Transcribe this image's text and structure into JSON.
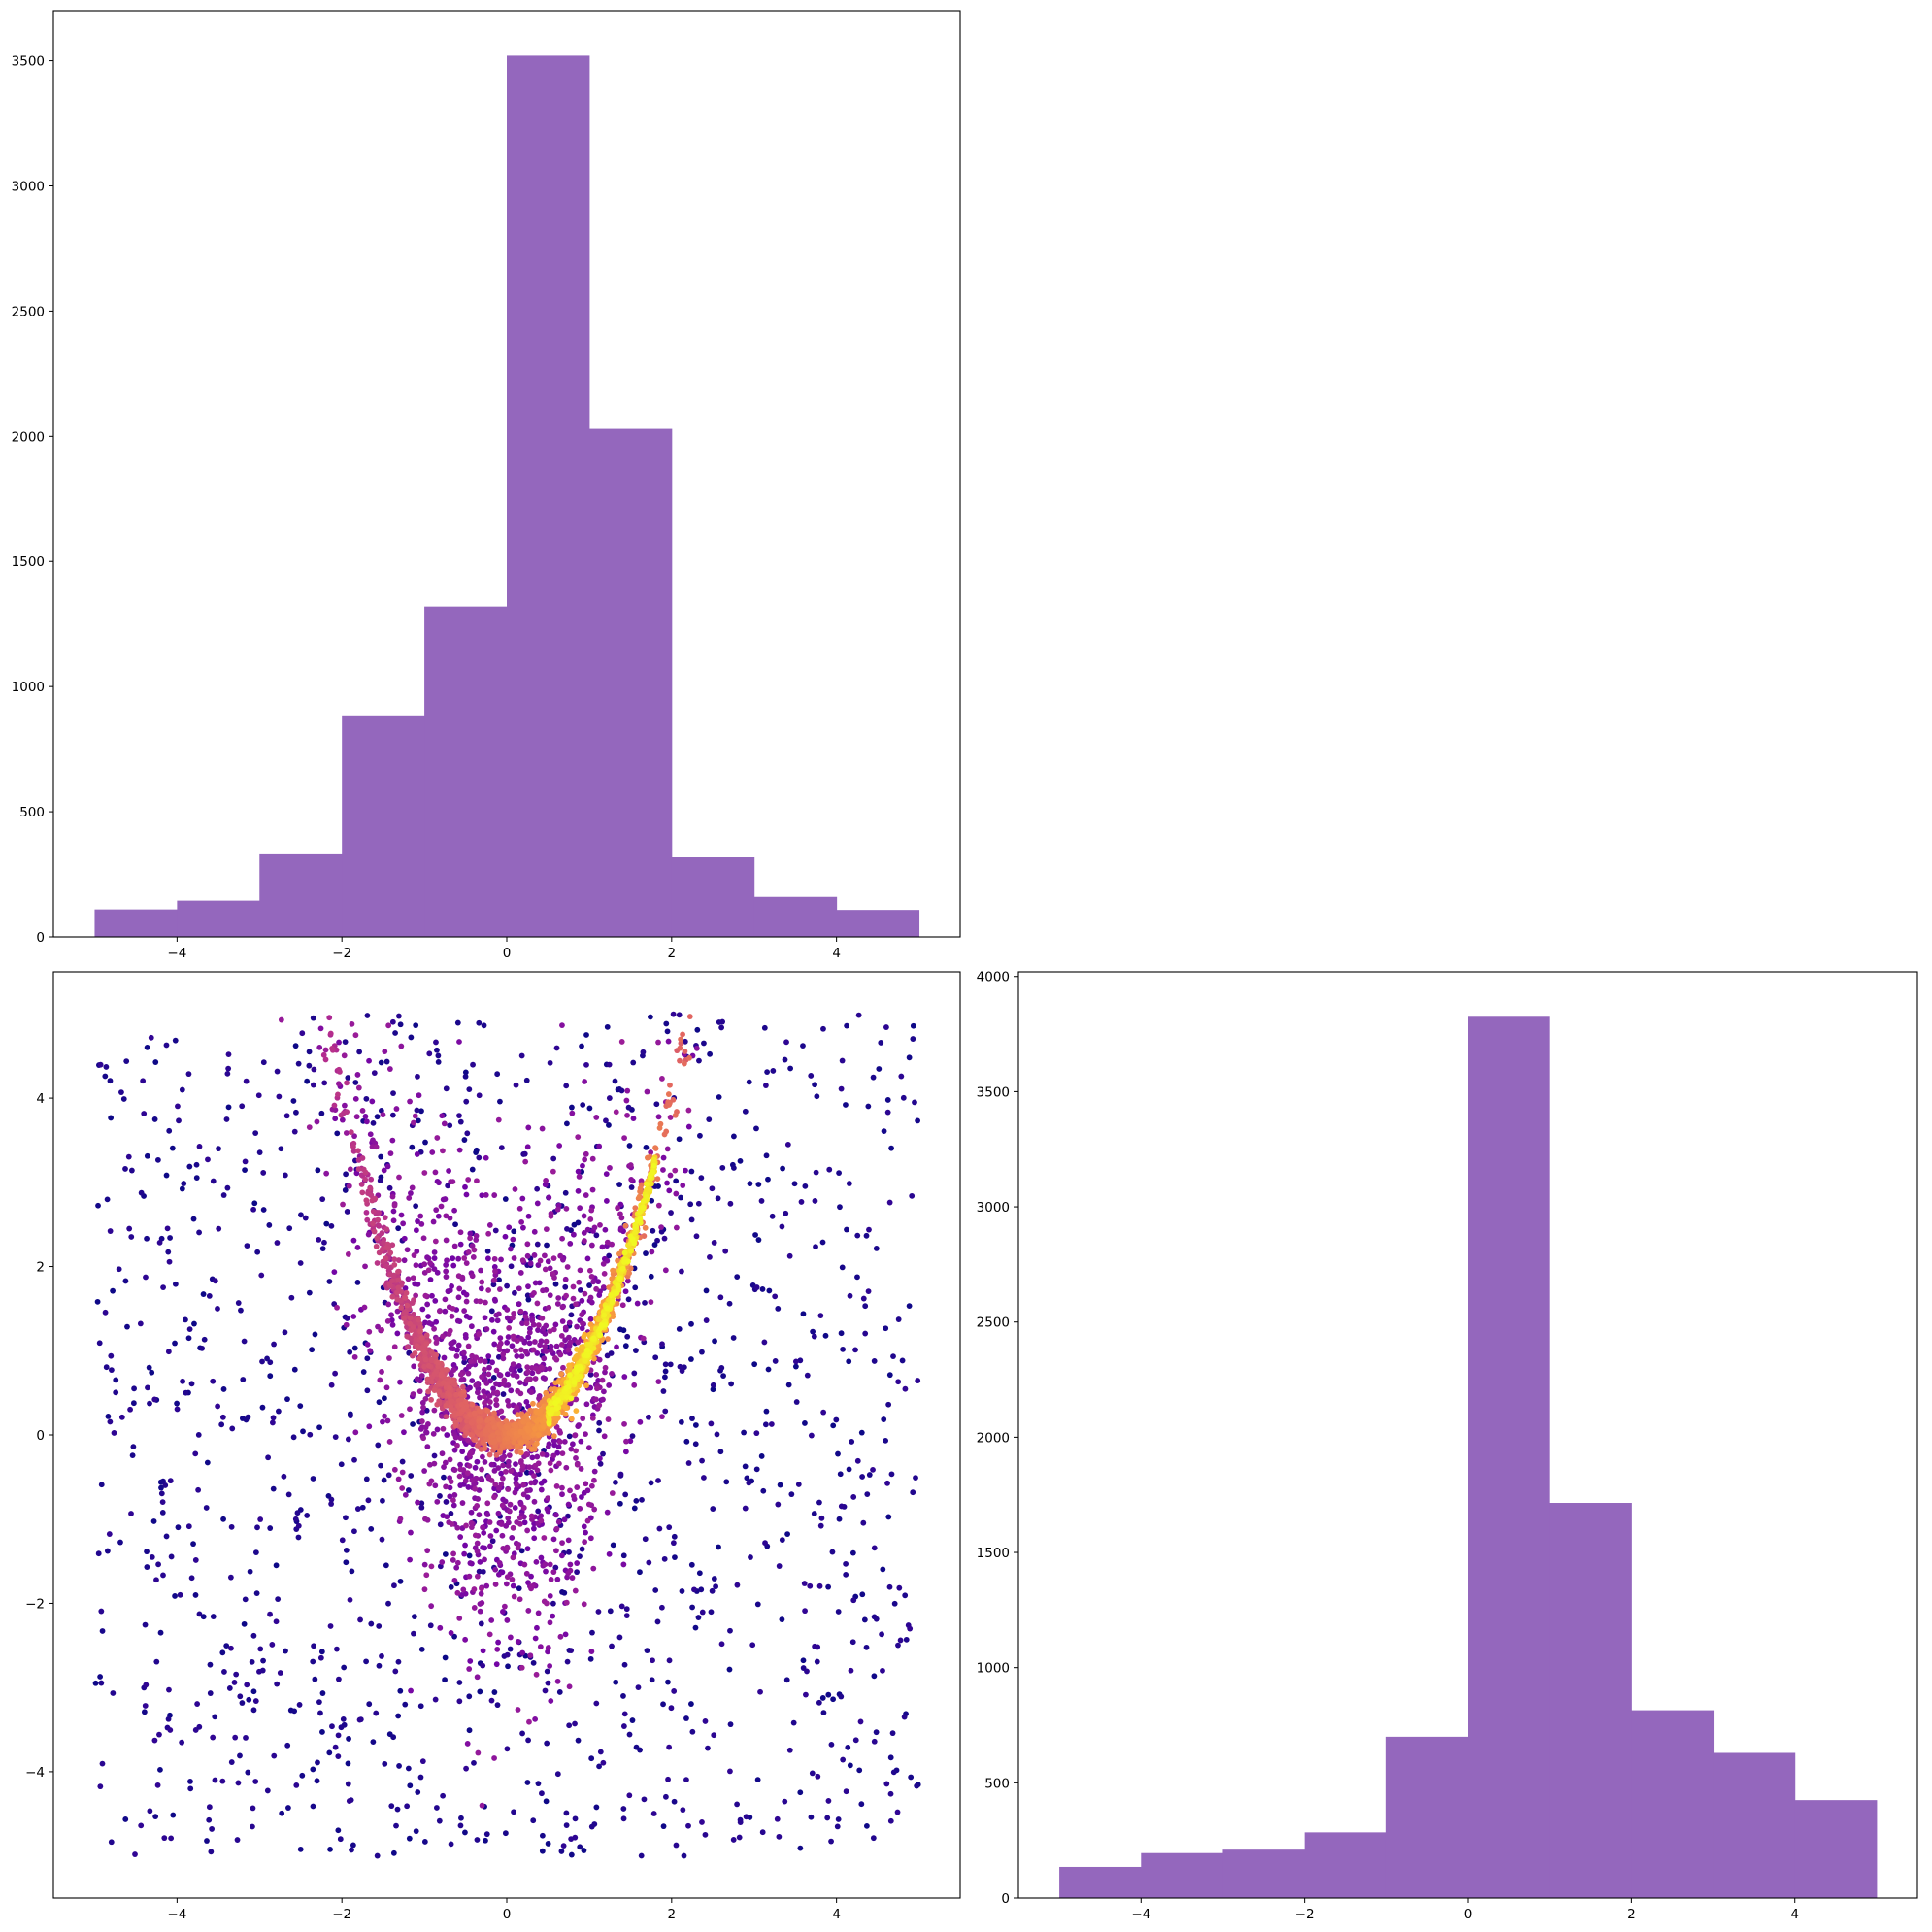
{
  "chart_data": [
    {
      "panel": "top-left",
      "type": "bar",
      "title": "",
      "xlabel": "",
      "ylabel": "",
      "bin_edges": [
        -5,
        -4,
        -3,
        -2,
        -1,
        0,
        1,
        2,
        3,
        4,
        5
      ],
      "values": [
        110,
        145,
        330,
        885,
        1320,
        3520,
        2030,
        318,
        160,
        108
      ],
      "xlim": [
        -5.5,
        5.5
      ],
      "ylim": [
        0,
        3700
      ],
      "xticks": [
        -4,
        -2,
        0,
        2,
        4
      ],
      "xtick_labels": [
        "−4",
        "−2",
        "0",
        "2",
        "4"
      ],
      "yticks": [
        0,
        500,
        1000,
        1500,
        2000,
        2500,
        3000,
        3500
      ],
      "ytick_labels": [
        "0",
        "500",
        "1000",
        "1500",
        "2000",
        "2500",
        "3000",
        "3500"
      ],
      "color": "#9467bd",
      "grid": false
    },
    {
      "panel": "bottom-left",
      "type": "scatter",
      "title": "",
      "xlabel": "",
      "ylabel": "",
      "description_of_points": "density-colored scatter; dense U-shaped band following y = x^2 (banana shape), uniform background noise over [-5,5]x[-5,5]",
      "band_points": [
        {
          "x": -2.0,
          "y": 4.6
        },
        {
          "x": -1.8,
          "y": 3.9
        },
        {
          "x": -1.6,
          "y": 3.1
        },
        {
          "x": -1.4,
          "y": 2.4
        },
        {
          "x": -1.2,
          "y": 1.6
        },
        {
          "x": -1.0,
          "y": 1.1
        },
        {
          "x": -0.8,
          "y": 0.7
        },
        {
          "x": -0.6,
          "y": 0.4
        },
        {
          "x": -0.4,
          "y": 0.2
        },
        {
          "x": -0.2,
          "y": 0.05
        },
        {
          "x": 0.0,
          "y": 0.0
        },
        {
          "x": 0.2,
          "y": 0.05
        },
        {
          "x": 0.4,
          "y": 0.15
        },
        {
          "x": 0.6,
          "y": 0.35
        },
        {
          "x": 0.8,
          "y": 0.6
        },
        {
          "x": 1.0,
          "y": 0.95
        },
        {
          "x": 1.2,
          "y": 1.4
        },
        {
          "x": 1.4,
          "y": 1.95
        },
        {
          "x": 1.6,
          "y": 2.6
        },
        {
          "x": 1.8,
          "y": 3.3
        },
        {
          "x": 2.0,
          "y": 4.1
        },
        {
          "x": 2.2,
          "y": 4.7
        }
      ],
      "xlim": [
        -5.5,
        5.5
      ],
      "ylim": [
        -5.5,
        5.5
      ],
      "xticks": [
        -4,
        -2,
        0,
        2,
        4
      ],
      "xtick_labels": [
        "−4",
        "−2",
        "0",
        "2",
        "4"
      ],
      "yticks": [
        -4,
        -2,
        0,
        2,
        4
      ],
      "ytick_labels": [
        "−4",
        "−2",
        "0",
        "2",
        "4"
      ],
      "colormap": [
        "#0d0887",
        "#6a00a8",
        "#b12a90",
        "#e16462",
        "#fca636",
        "#f0f921"
      ],
      "grid": false
    },
    {
      "panel": "bottom-right",
      "type": "bar",
      "title": "",
      "xlabel": "",
      "ylabel": "",
      "bin_edges": [
        -5,
        -4,
        -3,
        -2,
        -1,
        0,
        1,
        2,
        3,
        4,
        5
      ],
      "values": [
        135,
        195,
        210,
        285,
        700,
        3825,
        1715,
        815,
        630,
        425
      ],
      "xlim": [
        -5.5,
        5.5
      ],
      "ylim": [
        0,
        4020
      ],
      "xticks": [
        -4,
        -2,
        0,
        2,
        4
      ],
      "xtick_labels": [
        "−4",
        "−2",
        "0",
        "2",
        "4"
      ],
      "yticks": [
        0,
        500,
        1000,
        1500,
        2000,
        2500,
        3000,
        3500,
        4000
      ],
      "ytick_labels": [
        "0",
        "500",
        "1000",
        "1500",
        "2000",
        "2500",
        "3000",
        "3500",
        "4000"
      ],
      "color": "#9467bd",
      "grid": false
    }
  ]
}
